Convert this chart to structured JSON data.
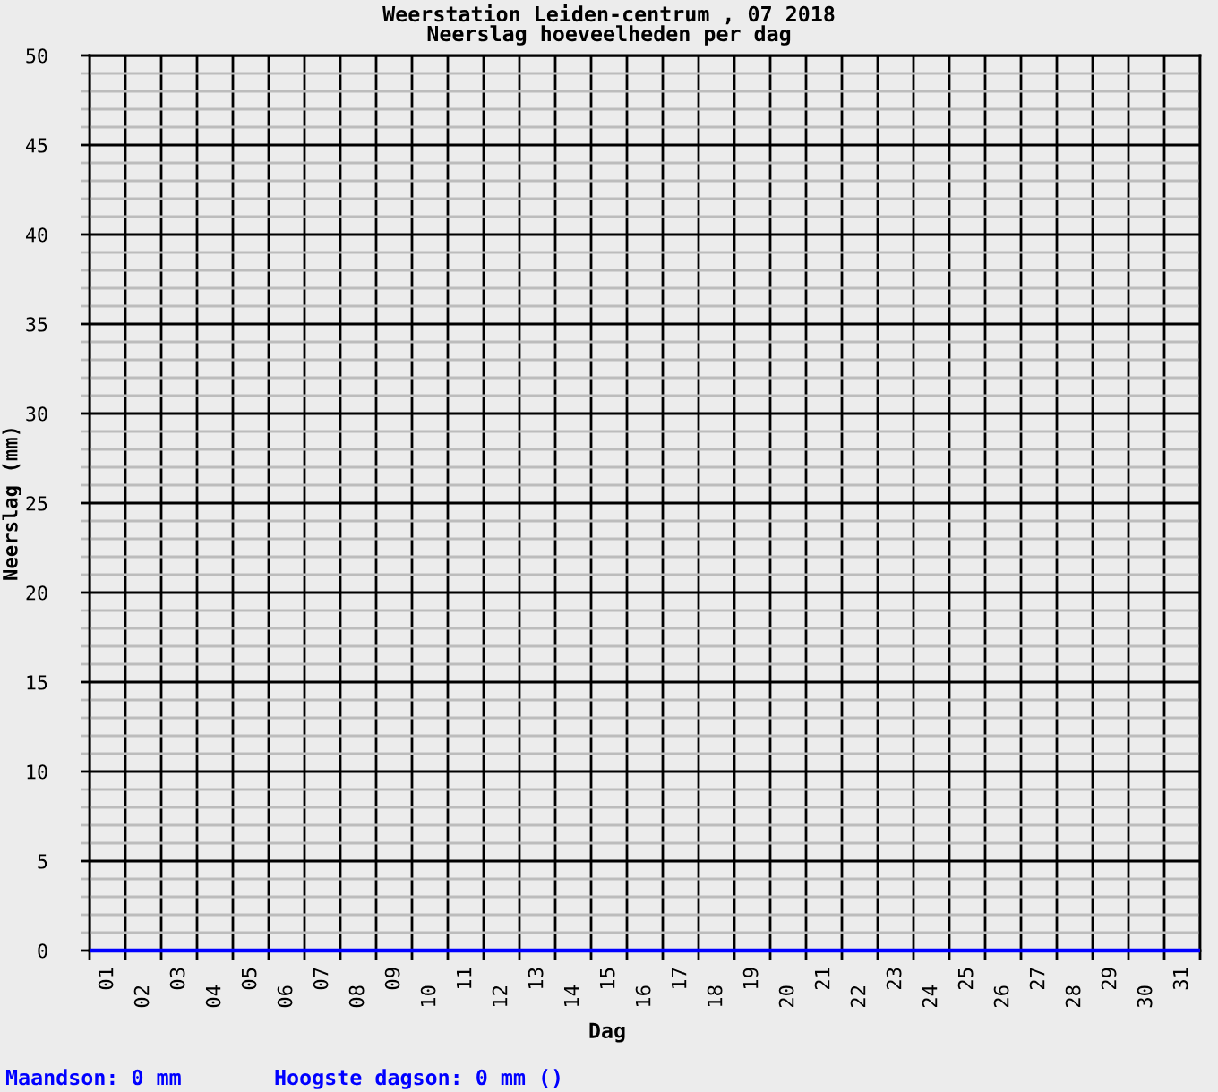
{
  "chart_data": {
    "type": "bar",
    "title": "Weerstation Leiden-centrum , 07 2018",
    "subtitle": "Neerslag hoeveelheden per dag",
    "xlabel": "Dag",
    "ylabel": "Neerslag (mm)",
    "categories": [
      "01",
      "02",
      "03",
      "04",
      "05",
      "06",
      "07",
      "08",
      "09",
      "10",
      "11",
      "12",
      "13",
      "14",
      "15",
      "16",
      "17",
      "18",
      "19",
      "20",
      "21",
      "22",
      "23",
      "24",
      "25",
      "26",
      "27",
      "28",
      "29",
      "30",
      "31"
    ],
    "values": [
      0,
      0,
      0,
      0,
      0,
      0,
      0,
      0,
      0,
      0,
      0,
      0,
      0,
      0,
      0,
      0,
      0,
      0,
      0,
      0,
      0,
      0,
      0,
      0,
      0,
      0,
      0,
      0,
      0,
      0,
      0
    ],
    "color": "#0000ff",
    "ylim": [
      0,
      50
    ],
    "yticks": [
      0,
      {
        "value": 1,
        "label": null
      },
      {
        "value": 2,
        "label": null
      },
      {
        "value": 3,
        "label": null
      },
      {
        "value": 4,
        "label": null
      },
      5,
      {
        "value": 6,
        "label": null
      },
      {
        "value": 7,
        "label": null
      },
      {
        "value": 8,
        "label": null
      },
      {
        "value": 9,
        "label": null
      },
      10,
      {
        "value": 11,
        "label": null
      },
      {
        "value": 12,
        "label": null
      },
      {
        "value": 13,
        "label": null
      },
      {
        "value": 14,
        "label": null
      },
      15,
      {
        "value": 16,
        "label": null
      },
      {
        "value": 17,
        "label": null
      },
      {
        "value": 18,
        "label": null
      },
      {
        "value": 19,
        "label": null
      },
      20,
      {
        "value": 21,
        "label": null
      },
      {
        "value": 22,
        "label": null
      },
      {
        "value": 23,
        "label": null
      },
      {
        "value": 24,
        "label": null
      },
      25,
      {
        "value": 26,
        "label": null
      },
      {
        "value": 27,
        "label": null
      },
      {
        "value": 28,
        "label": null
      },
      {
        "value": 29,
        "label": null
      },
      30,
      {
        "value": 31,
        "label": null
      },
      {
        "value": 32,
        "label": null
      },
      {
        "value": 33,
        "label": null
      },
      {
        "value": 34,
        "label": null
      },
      35,
      {
        "value": 36,
        "label": null
      },
      {
        "value": 37,
        "label": null
      },
      {
        "value": 38,
        "label": null
      },
      {
        "value": 39,
        "label": null
      },
      40,
      {
        "value": 41,
        "label": null
      },
      {
        "value": 42,
        "label": null
      },
      {
        "value": 43,
        "label": null
      },
      {
        "value": 44,
        "label": null
      },
      45,
      {
        "value": 46,
        "label": null
      },
      {
        "value": 47,
        "label": null
      },
      {
        "value": 48,
        "label": null
      },
      {
        "value": 49,
        "label": null
      },
      50
    ],
    "grid": true,
    "annotations": [
      "Maandson: 0 mm",
      "Hoogste dagson: 0 mm ()"
    ]
  }
}
